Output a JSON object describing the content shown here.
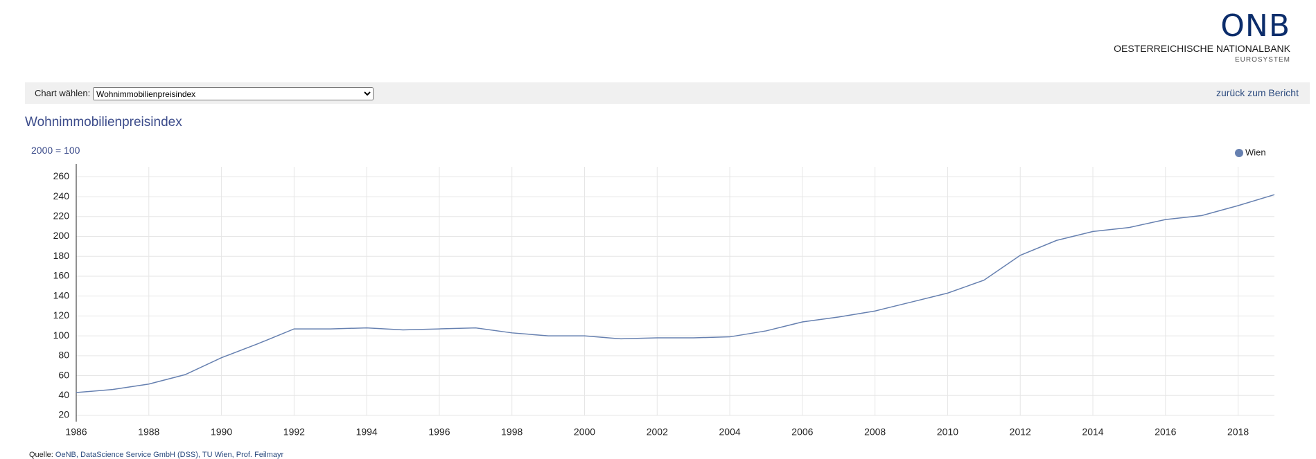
{
  "header": {
    "logo": "ONB",
    "bank": "OESTERREICHISCHE NATIONALBANK",
    "system": "EUROSYSTEM"
  },
  "toolbar": {
    "label": "Chart wählen:",
    "selected": "Wohnimmobilienpreisindex",
    "back_link": "zurück zum Bericht"
  },
  "chart_data": {
    "type": "line",
    "title": "Wohnimmobilienpreisindex",
    "subtitle": "2000 = 100",
    "x": [
      1986,
      1987,
      1988,
      1989,
      1990,
      1991,
      1992,
      1993,
      1994,
      1995,
      1996,
      1997,
      1998,
      1999,
      2000,
      2001,
      2002,
      2003,
      2004,
      2005,
      2006,
      2007,
      2008,
      2009,
      2010,
      2011,
      2012,
      2013,
      2014,
      2015,
      2016,
      2017,
      2018,
      2019
    ],
    "series": [
      {
        "name": "Wien",
        "color": "#6680b0",
        "values": [
          43,
          46,
          51.5,
          61,
          78,
          92,
          107,
          107,
          108,
          106,
          107,
          108,
          103,
          100,
          100,
          97,
          98,
          98,
          99,
          105,
          114,
          119,
          125,
          134,
          143,
          156,
          181,
          196,
          205,
          209,
          217,
          221,
          231,
          242
        ]
      }
    ],
    "xlim": [
      1986,
      2019
    ],
    "ylim": [
      20,
      270
    ],
    "xticks": [
      1986,
      1988,
      1990,
      1992,
      1994,
      1996,
      1998,
      2000,
      2002,
      2004,
      2006,
      2008,
      2010,
      2012,
      2014,
      2016,
      2018
    ],
    "yticks": [
      20,
      40,
      60,
      80,
      100,
      120,
      140,
      160,
      180,
      200,
      220,
      240,
      260
    ],
    "grid": true,
    "legend": "top-right"
  },
  "source": {
    "label": "Quelle:",
    "text": "OeNB, DataScience Service GmbH (DSS), TU Wien, Prof. Feilmayr"
  }
}
